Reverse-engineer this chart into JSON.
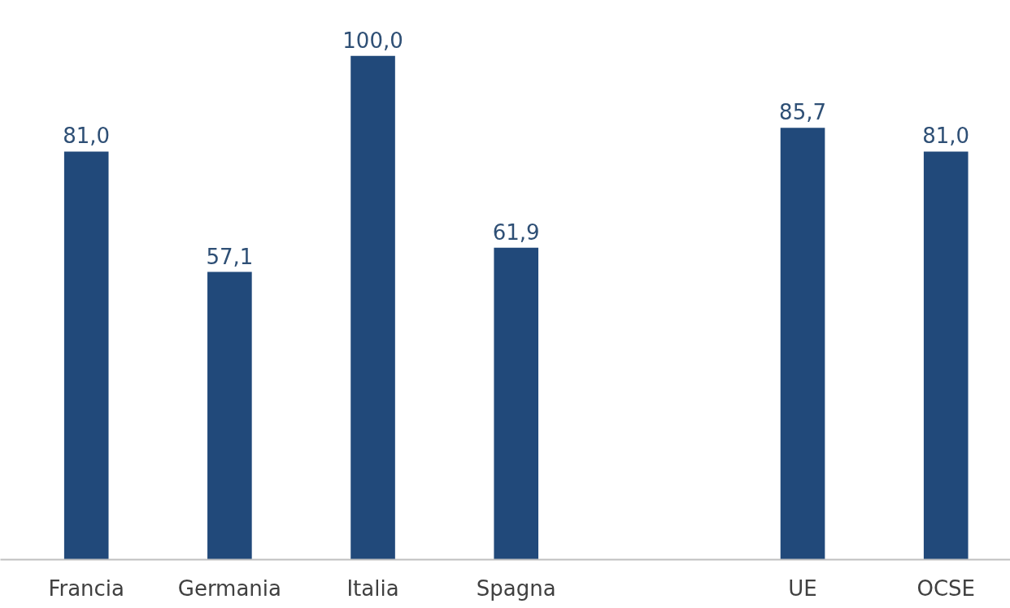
{
  "chart_data": {
    "type": "bar",
    "categories": [
      "Francia",
      "Germania",
      "Italia",
      "Spagna",
      null,
      "UE",
      "OCSE"
    ],
    "values": [
      81.0,
      57.1,
      100.0,
      61.9,
      null,
      85.7,
      81.0
    ],
    "value_labels": [
      "81,0",
      "57,1",
      "100,0",
      "61,9",
      null,
      "85,7",
      "81,0"
    ],
    "color": "#21497a",
    "grid": false
  }
}
